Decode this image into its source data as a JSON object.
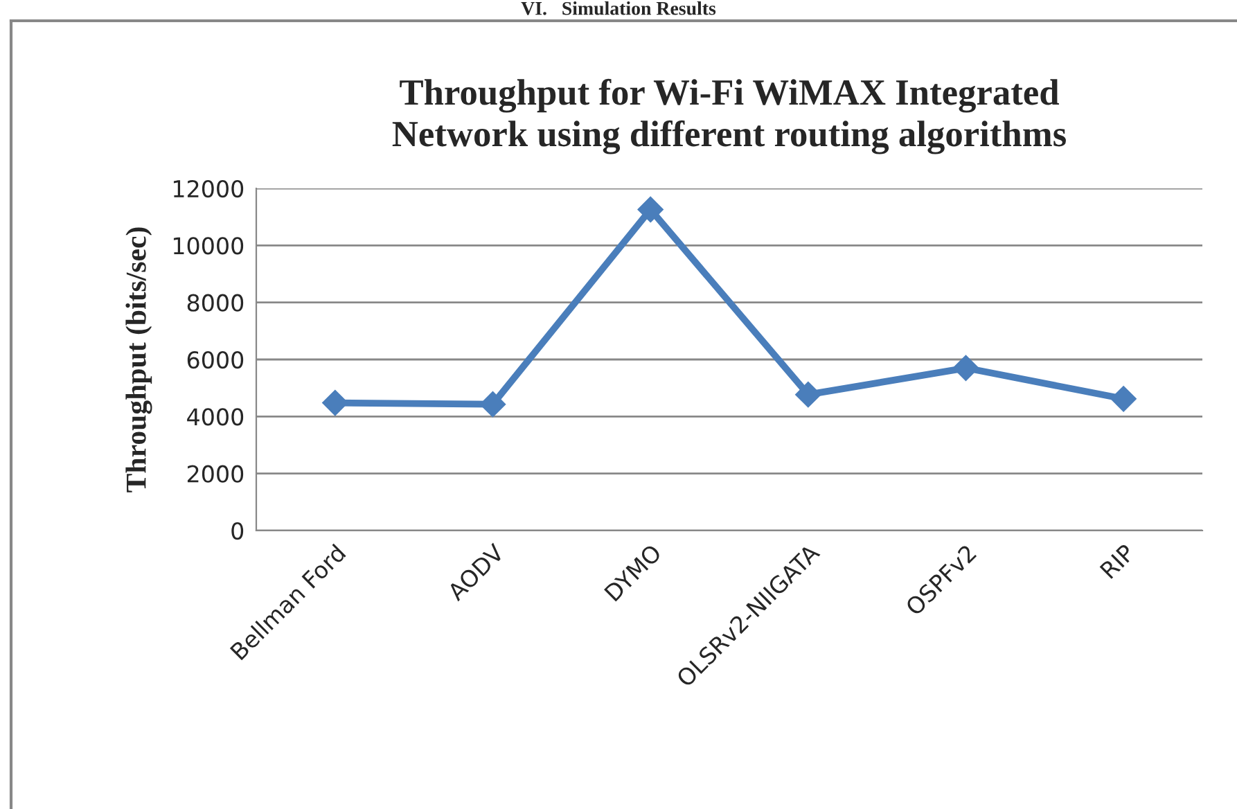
{
  "chart_data": {
    "type": "line",
    "title": "Throughput for Wi-Fi WiMAX Integrated\nNetwork using different routing algorithms",
    "ylabel": "Throughput (bits/sec)",
    "annotations": [
      "VI.   Simulation Results"
    ],
    "categories": [
      "Bellman Ford",
      "AODV",
      "DYMO",
      "OLSRv2-NIIGATA",
      "OSPFv2",
      "RIP"
    ],
    "series": [
      {
        "color": "#4a7ebb",
        "values": [
          4480,
          4430,
          11260,
          4770,
          5700,
          4620
        ]
      }
    ],
    "ylim": [
      0,
      12000
    ],
    "yticks": [
      0,
      2000,
      4000,
      6000,
      8000,
      10000,
      12000
    ],
    "grid": "y",
    "legend": false,
    "marker": "diamond",
    "line_style": "solid"
  }
}
